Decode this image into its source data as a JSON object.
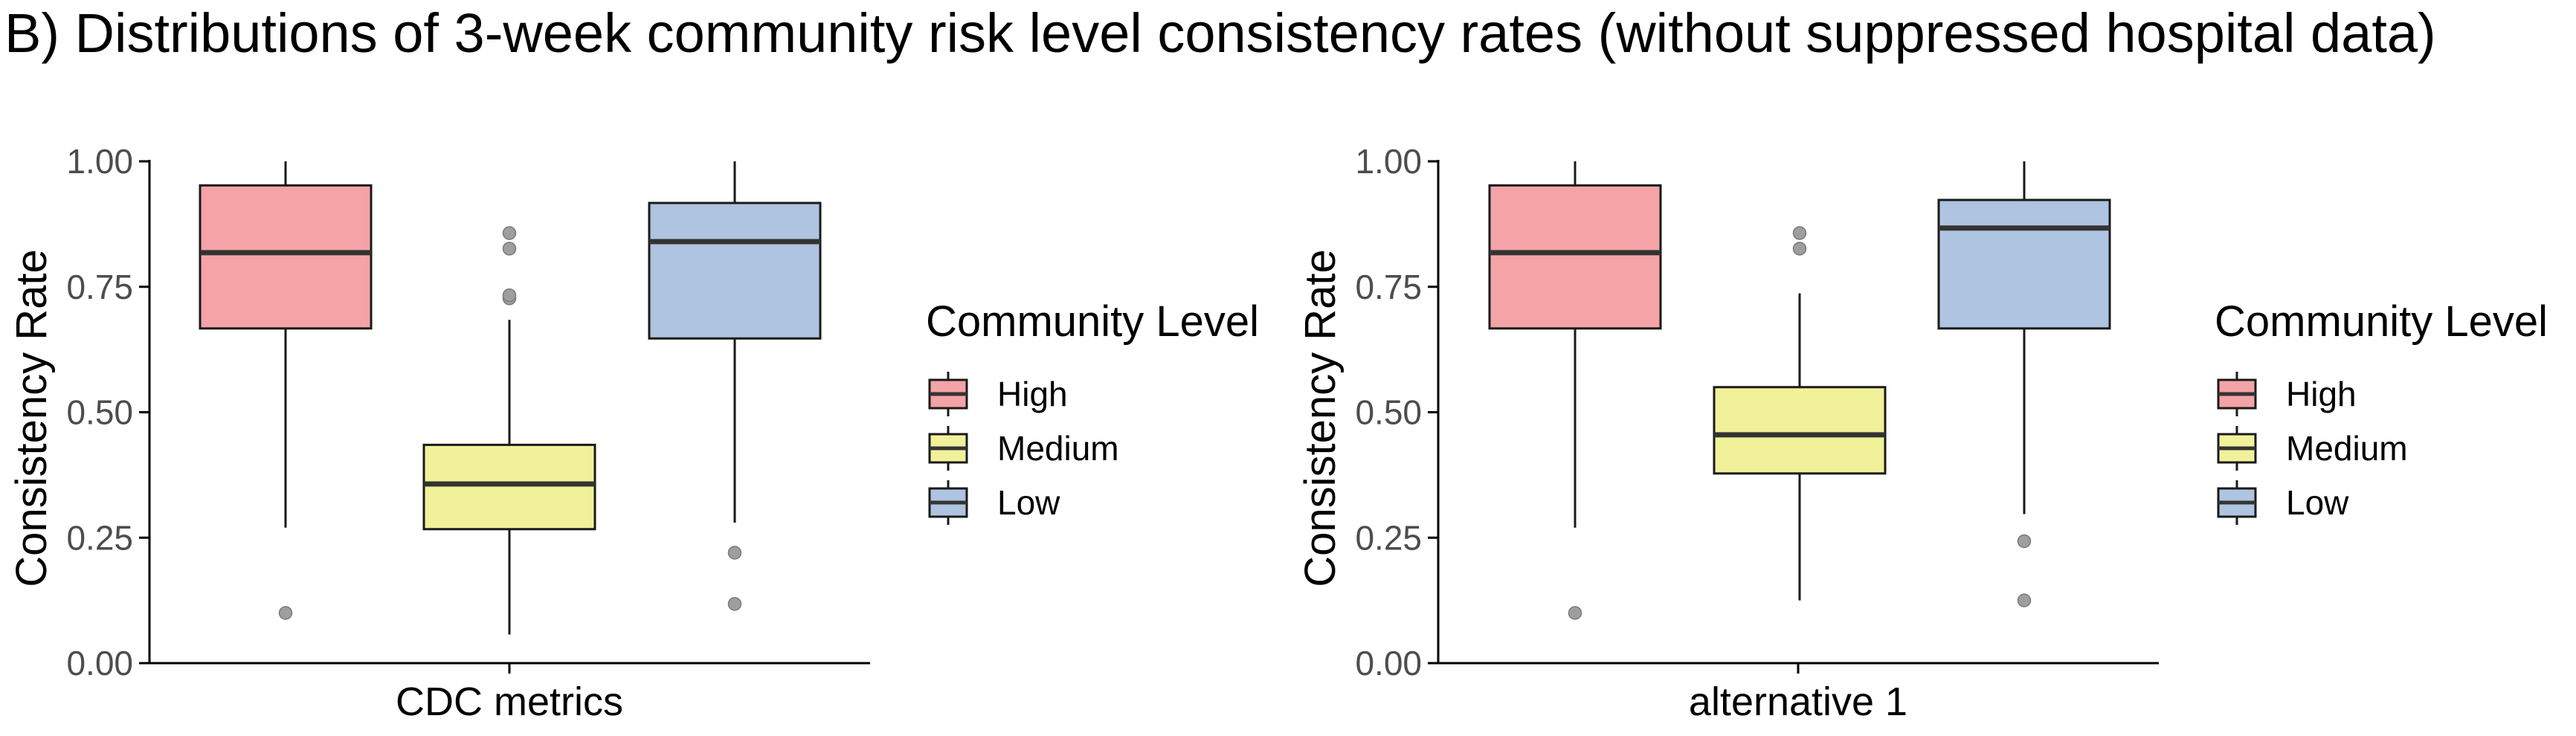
{
  "title": "B) Distributions of 3-week community risk level consistency rates (without suppressed hospital data)",
  "colors": {
    "high": "#f4a3a6",
    "medium": "#f1f19a",
    "low": "#aec4e0",
    "outline": "#1a1a1a",
    "median": "#333333",
    "outlier": "#9e9e9e",
    "axis": "#000000"
  },
  "chart_data": [
    {
      "type": "boxplot",
      "xlabel": "",
      "ylabel": "Consistency Rate",
      "category": "CDC metrics",
      "ylim": [
        0,
        1
      ],
      "yticks": [
        0.0,
        0.25,
        0.5,
        0.75,
        1.0
      ],
      "ytick_labels": [
        "0.00",
        "0.25",
        "0.50",
        "0.75",
        "1.00"
      ],
      "legend": {
        "title": "Community Level",
        "entries": [
          "High",
          "Medium",
          "Low"
        ],
        "placement": "right"
      },
      "series": [
        {
          "name": "High",
          "color_key": "high",
          "whisker_low": 0.27,
          "q1": 0.667,
          "median": 0.818,
          "q3": 0.952,
          "whisker_high": 1.0,
          "outliers": [
            0.1
          ]
        },
        {
          "name": "Medium",
          "color_key": "medium",
          "whisker_low": 0.057,
          "q1": 0.267,
          "median": 0.357,
          "q3": 0.435,
          "whisker_high": 0.684,
          "outliers": [
            0.727,
            0.733,
            0.826,
            0.857
          ]
        },
        {
          "name": "Low",
          "color_key": "low",
          "whisker_low": 0.28,
          "q1": 0.647,
          "median": 0.84,
          "q3": 0.917,
          "whisker_high": 1.0,
          "outliers": [
            0.22,
            0.118
          ]
        }
      ]
    },
    {
      "type": "boxplot",
      "xlabel": "",
      "ylabel": "Consistency Rate",
      "category": "alternative 1",
      "ylim": [
        0,
        1
      ],
      "yticks": [
        0.0,
        0.25,
        0.5,
        0.75,
        1.0
      ],
      "ytick_labels": [
        "0.00",
        "0.25",
        "0.50",
        "0.75",
        "1.00"
      ],
      "legend": {
        "title": "Community Level",
        "entries": [
          "High",
          "Medium",
          "Low"
        ],
        "placement": "right"
      },
      "series": [
        {
          "name": "High",
          "color_key": "high",
          "whisker_low": 0.27,
          "q1": 0.667,
          "median": 0.818,
          "q3": 0.952,
          "whisker_high": 1.0,
          "outliers": [
            0.1
          ]
        },
        {
          "name": "Medium",
          "color_key": "medium",
          "whisker_low": 0.125,
          "q1": 0.378,
          "median": 0.455,
          "q3": 0.55,
          "whisker_high": 0.737,
          "outliers": [
            0.826,
            0.857
          ]
        },
        {
          "name": "Low",
          "color_key": "low",
          "whisker_low": 0.297,
          "q1": 0.667,
          "median": 0.867,
          "q3": 0.923,
          "whisker_high": 1.0,
          "outliers": [
            0.243,
            0.125
          ]
        }
      ]
    }
  ]
}
